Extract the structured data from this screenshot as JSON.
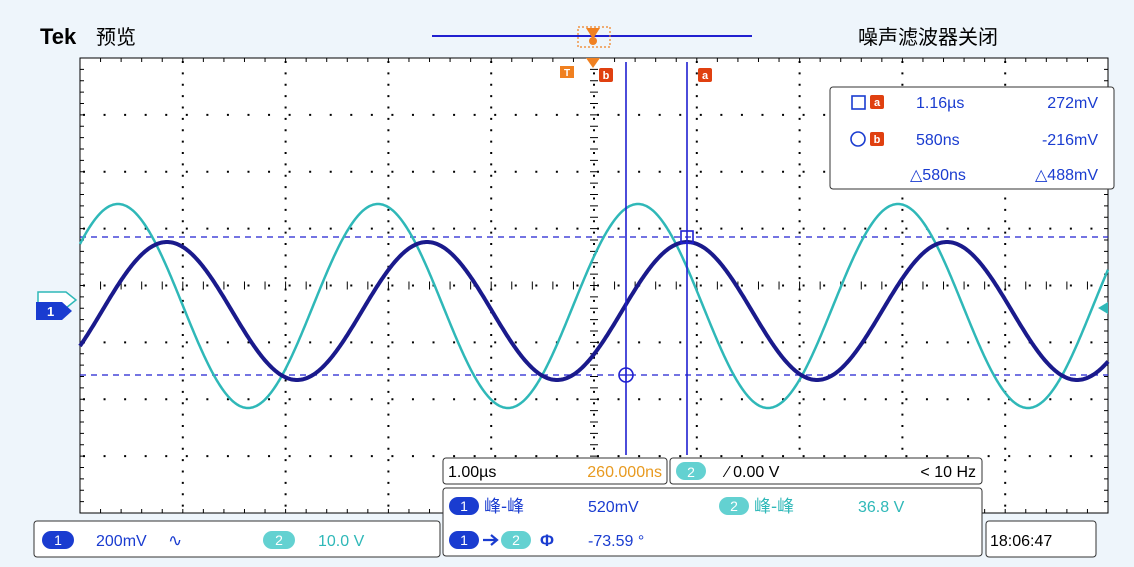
{
  "header": {
    "brand": "Tek",
    "mode": "预览",
    "status": "噪声滤波器关闭"
  },
  "colors": {
    "ch1": "#1a1a8c",
    "ch2": "#2fb8b8",
    "ch2_label_bg": "#63d1d1",
    "cursor": "#2020d0",
    "trigger_marker": "#f08020",
    "trigger_delay_text": "#e89a20",
    "grid_dot": "#000000",
    "screen_bg": "#ffffff",
    "page_bg": "#eef5fb"
  },
  "cursor_readout": {
    "a": {
      "marker": "a",
      "time": "1.16µs",
      "volts": "272mV",
      "shape": "square"
    },
    "b": {
      "marker": "b",
      "time": "580ns",
      "volts": "-216mV",
      "shape": "circle"
    },
    "delta": {
      "time": "△580ns",
      "volts": "△488mV"
    }
  },
  "timebase": {
    "scale": "1.00µs",
    "delay": "260.000ns"
  },
  "trigger": {
    "source": "2",
    "slope_level": "∕ 0.00 V",
    "freq": "< 10 Hz"
  },
  "measurements": [
    {
      "src": "1",
      "label": "峰-峰",
      "value": "520mV"
    },
    {
      "src": "2",
      "label": "峰-峰",
      "value": "36.8 V"
    },
    {
      "src_from": "1",
      "src_to": "2",
      "label": "Φ",
      "value": "-73.59 °"
    }
  ],
  "channels": {
    "ch1": {
      "num": "1",
      "scale": "200mV",
      "coupling": "∿"
    },
    "ch2": {
      "num": "2",
      "scale": "10.0 V"
    }
  },
  "clock": "18:06:47",
  "markers": {
    "ch1_ground": "1",
    "cursor_a": "a",
    "cursor_b": "b"
  }
}
